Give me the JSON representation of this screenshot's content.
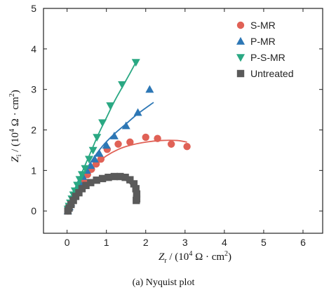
{
  "chart_data": {
    "type": "scatter",
    "xlabel": {
      "symbol": "Z",
      "sub": "r",
      "rest": " / (10",
      "sup": "4",
      "unit": " Ω · cm",
      "unit_sup": "2",
      "close": ")"
    },
    "ylabel": {
      "symbol": "Z",
      "sub": "i",
      "rest": " / (10",
      "sup": "4",
      "unit": " Ω · cm",
      "unit_sup": "2",
      "close": ")"
    },
    "caption": "(a) Nyquist plot",
    "xlim": [
      -0.6,
      6.5
    ],
    "ylim": [
      -0.55,
      5.0
    ],
    "xticks": [
      "0",
      "1",
      "2",
      "3",
      "4",
      "5",
      "6"
    ],
    "yticks": [
      "0",
      "1",
      "2",
      "3",
      "4",
      "5"
    ],
    "legend_position": "top-right",
    "grid": false,
    "series": [
      {
        "name": "S-MR",
        "marker": "circle",
        "color": "#e06156",
        "points": [
          [
            0.02,
            0.0
          ],
          [
            0.05,
            0.08
          ],
          [
            0.1,
            0.18
          ],
          [
            0.16,
            0.3
          ],
          [
            0.24,
            0.45
          ],
          [
            0.32,
            0.6
          ],
          [
            0.42,
            0.75
          ],
          [
            0.52,
            0.9
          ],
          [
            0.62,
            1.03
          ],
          [
            0.74,
            1.16
          ],
          [
            0.86,
            1.28
          ],
          [
            1.02,
            1.52
          ],
          [
            1.3,
            1.65
          ],
          [
            1.6,
            1.7
          ],
          [
            2.0,
            1.82
          ],
          [
            2.3,
            1.79
          ],
          [
            2.65,
            1.65
          ],
          [
            3.05,
            1.59
          ]
        ],
        "fit": [
          [
            0.0,
            0.0
          ],
          [
            0.2,
            0.4
          ],
          [
            0.4,
            0.72
          ],
          [
            0.6,
            1.0
          ],
          [
            0.8,
            1.2
          ],
          [
            1.0,
            1.36
          ],
          [
            1.3,
            1.52
          ],
          [
            1.6,
            1.62
          ],
          [
            2.0,
            1.7
          ],
          [
            2.4,
            1.74
          ],
          [
            2.8,
            1.74
          ],
          [
            3.05,
            1.7
          ]
        ]
      },
      {
        "name": "P-MR",
        "marker": "triangle-up",
        "color": "#2d77b5",
        "points": [
          [
            0.02,
            0.0
          ],
          [
            0.06,
            0.1
          ],
          [
            0.1,
            0.2
          ],
          [
            0.14,
            0.3
          ],
          [
            0.2,
            0.42
          ],
          [
            0.26,
            0.56
          ],
          [
            0.32,
            0.7
          ],
          [
            0.4,
            0.85
          ],
          [
            0.5,
            1.0
          ],
          [
            0.6,
            1.12
          ],
          [
            0.7,
            1.28
          ],
          [
            0.82,
            1.42
          ],
          [
            1.0,
            1.62
          ],
          [
            1.2,
            1.85
          ],
          [
            1.5,
            2.1
          ],
          [
            1.8,
            2.43
          ],
          [
            2.1,
            3.0
          ]
        ],
        "fit": [
          [
            0.0,
            0.0
          ],
          [
            0.2,
            0.45
          ],
          [
            0.4,
            0.85
          ],
          [
            0.6,
            1.2
          ],
          [
            0.9,
            1.6
          ],
          [
            1.2,
            1.9
          ],
          [
            1.5,
            2.15
          ],
          [
            1.8,
            2.4
          ],
          [
            2.2,
            2.68
          ]
        ]
      },
      {
        "name": "P-S-MR",
        "marker": "triangle-down",
        "color": "#2aa883",
        "points": [
          [
            0.02,
            0.05
          ],
          [
            0.05,
            0.12
          ],
          [
            0.08,
            0.2
          ],
          [
            0.12,
            0.3
          ],
          [
            0.16,
            0.4
          ],
          [
            0.2,
            0.5
          ],
          [
            0.26,
            0.64
          ],
          [
            0.32,
            0.78
          ],
          [
            0.38,
            0.9
          ],
          [
            0.46,
            1.05
          ],
          [
            0.56,
            1.28
          ],
          [
            0.66,
            1.5
          ],
          [
            0.76,
            1.82
          ],
          [
            0.9,
            2.18
          ],
          [
            1.1,
            2.6
          ],
          [
            1.4,
            3.12
          ],
          [
            1.75,
            3.67
          ]
        ],
        "fit": [
          [
            0.0,
            0.0
          ],
          [
            0.2,
            0.55
          ],
          [
            0.4,
            1.0
          ],
          [
            0.6,
            1.45
          ],
          [
            0.8,
            1.9
          ],
          [
            1.0,
            2.3
          ],
          [
            1.2,
            2.7
          ],
          [
            1.4,
            3.05
          ],
          [
            1.6,
            3.4
          ],
          [
            1.75,
            3.67
          ]
        ]
      },
      {
        "name": "Untreated",
        "marker": "square",
        "color": "#5a5a5a",
        "points": [
          [
            0.02,
            0.0
          ],
          [
            0.05,
            0.07
          ],
          [
            0.1,
            0.16
          ],
          [
            0.16,
            0.26
          ],
          [
            0.22,
            0.36
          ],
          [
            0.3,
            0.45
          ],
          [
            0.38,
            0.55
          ],
          [
            0.48,
            0.63
          ],
          [
            0.6,
            0.7
          ],
          [
            0.75,
            0.76
          ],
          [
            0.9,
            0.8
          ],
          [
            1.05,
            0.83
          ],
          [
            1.2,
            0.85
          ],
          [
            1.35,
            0.85
          ],
          [
            1.48,
            0.83
          ],
          [
            1.6,
            0.77
          ],
          [
            1.7,
            0.67
          ],
          [
            1.75,
            0.55
          ],
          [
            1.77,
            0.42
          ],
          [
            1.77,
            0.3
          ],
          [
            1.76,
            0.26
          ]
        ],
        "fit": [
          [
            0.0,
            0.0
          ],
          [
            0.2,
            0.34
          ],
          [
            0.4,
            0.56
          ],
          [
            0.6,
            0.7
          ],
          [
            0.8,
            0.79
          ],
          [
            1.0,
            0.83
          ],
          [
            1.2,
            0.84
          ],
          [
            1.4,
            0.8
          ],
          [
            1.6,
            0.68
          ],
          [
            1.72,
            0.5
          ],
          [
            1.82,
            0.28
          ]
        ]
      }
    ]
  }
}
